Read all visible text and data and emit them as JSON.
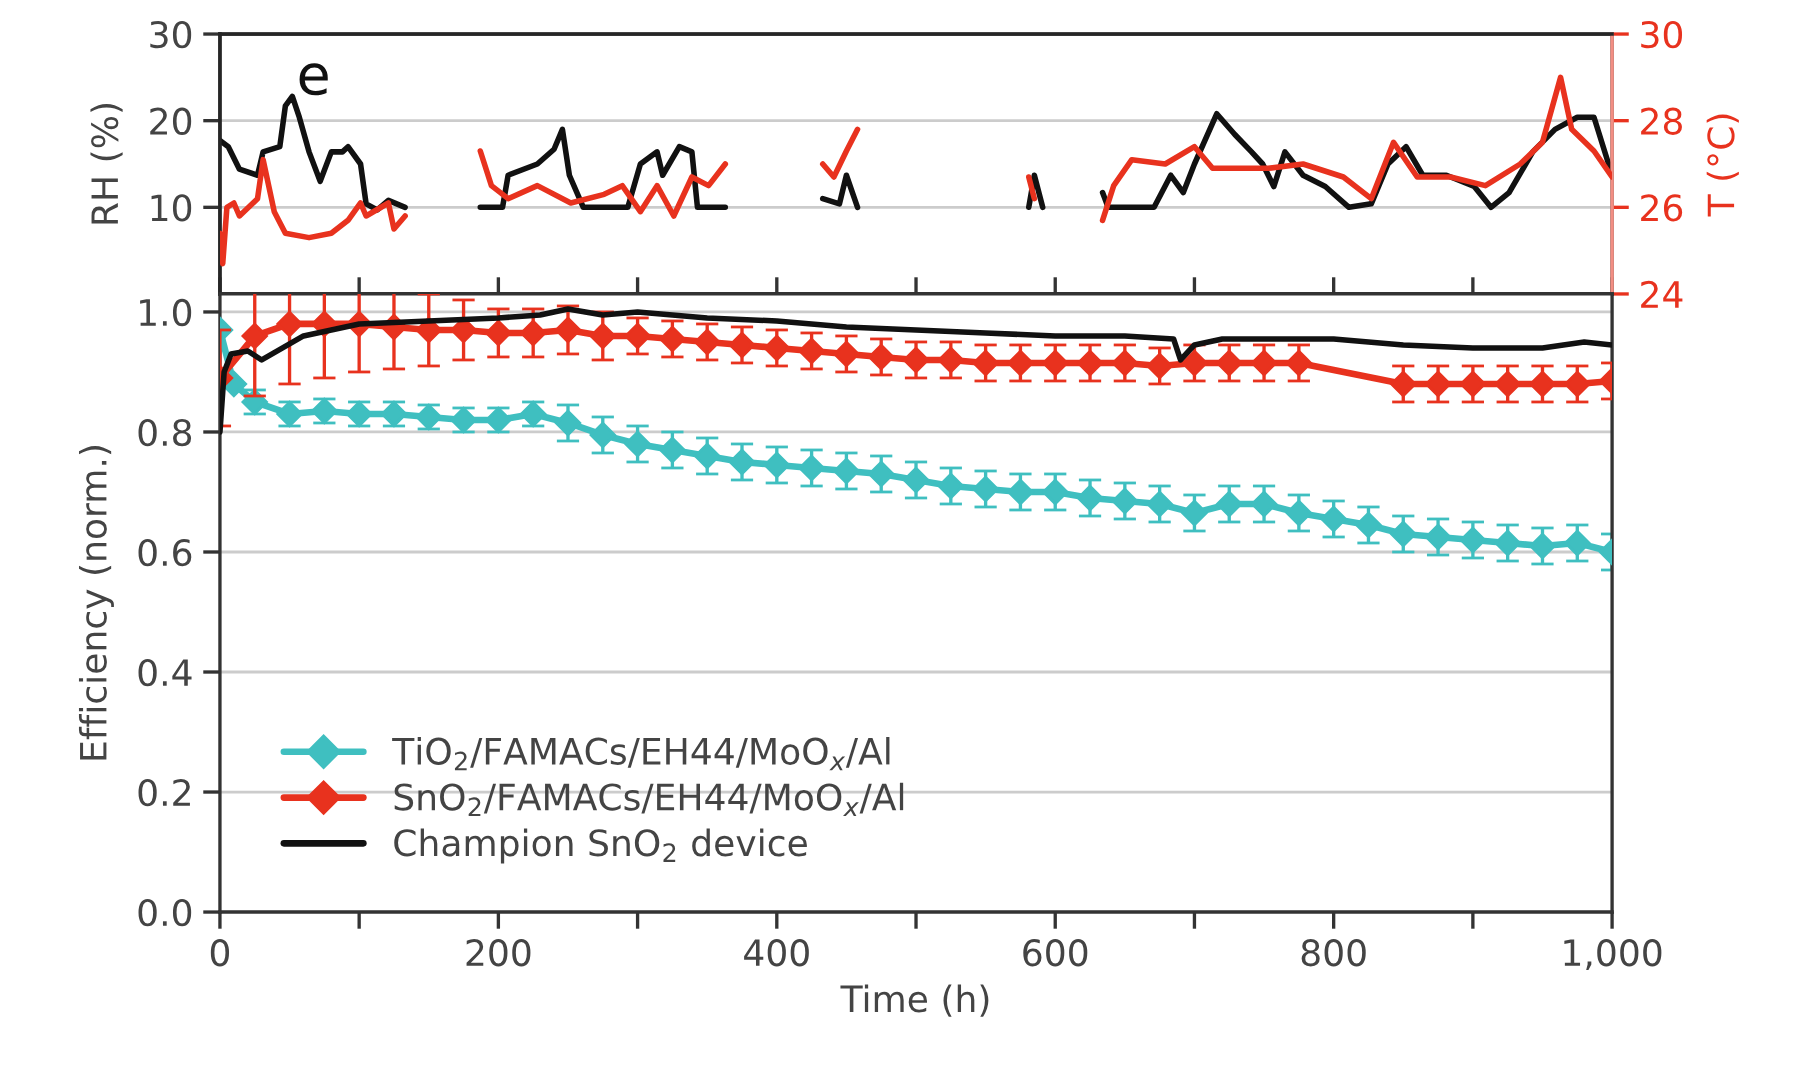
{
  "chart_data": [
    {
      "type": "line",
      "ylabel": "RH (%)",
      "y2label": "T (°C)",
      "annotations": [
        "e"
      ],
      "xlim": [
        0,
        1000
      ],
      "xticks": [
        0,
        100,
        200,
        300,
        400,
        500,
        600,
        700,
        800,
        900,
        1000
      ],
      "tick_labels": "y",
      "ylim": [
        0,
        30
      ],
      "yticks": [
        10,
        20,
        30
      ],
      "y2lim": [
        24,
        30
      ],
      "y2ticks": [
        24,
        26,
        28,
        30
      ],
      "grid": "y",
      "series": [
        {
          "color": "#111111",
          "x": [
            0,
            6,
            14,
            27,
            31,
            43,
            47,
            52,
            57,
            64,
            72,
            80,
            88,
            92,
            101,
            105,
            113,
            121,
            133,
            160,
            187,
            203,
            207,
            228,
            240,
            246,
            251,
            261,
            293,
            302,
            314,
            318,
            330,
            339,
            343,
            363,
            400,
            433,
            445,
            450,
            458,
            520,
            581,
            585,
            591,
            610,
            634,
            638,
            671,
            683,
            692,
            700,
            716,
            729,
            741,
            749,
            757,
            765,
            778,
            794,
            811,
            827,
            839,
            852,
            864,
            881,
            901,
            913,
            926,
            943,
            959,
            975,
            987,
            1000
          ],
          "values": [
            17.7,
            17,
            14.4,
            13.7,
            16.4,
            17,
            21.7,
            22.8,
            20.4,
            16.4,
            13,
            16.4,
            16.4,
            17,
            15,
            10.4,
            9.7,
            10.8,
            10,
            null,
            10,
            10,
            13.7,
            15,
            16.7,
            19,
            13.7,
            10,
            10,
            15,
            16.4,
            13.7,
            17,
            16.4,
            10,
            10,
            null,
            11,
            10.4,
            13.7,
            10,
            null,
            10,
            13.7,
            10,
            null,
            11.7,
            10,
            10,
            13.7,
            11.7,
            15,
            20.8,
            18.4,
            16.4,
            15,
            12.4,
            16.4,
            13.7,
            12.4,
            10,
            10.4,
            15,
            17,
            13.7,
            13.7,
            12.4,
            10,
            11.7,
            16.4,
            19,
            20.4,
            20.4,
            13.7
          ]
        },
        {
          "color": "#e8321e",
          "axis": "y2",
          "x": [
            0,
            2,
            5,
            10,
            14,
            27,
            31,
            39,
            47,
            64,
            80,
            92,
            101,
            105,
            121,
            125,
            133,
            160,
            187,
            195,
            207,
            228,
            252,
            276,
            289,
            302,
            314,
            326,
            339,
            351,
            363,
            400,
            433,
            441,
            450,
            458,
            520,
            581,
            585,
            610,
            634,
            642,
            655,
            679,
            700,
            713,
            729,
            753,
            778,
            807,
            827,
            843,
            860,
            884,
            909,
            934,
            950,
            963,
            971,
            987,
            1000
          ],
          "values": [
            25.4,
            24.7,
            26,
            26.1,
            25.8,
            26.2,
            27.1,
            25.9,
            25.4,
            25.3,
            25.4,
            25.7,
            26.1,
            25.8,
            26.1,
            25.5,
            25.8,
            null,
            27.3,
            26.5,
            26.2,
            26.5,
            26.1,
            26.3,
            26.5,
            25.9,
            26.5,
            25.8,
            26.7,
            26.5,
            27,
            null,
            27,
            26.7,
            27.3,
            27.8,
            null,
            26.7,
            26.2,
            null,
            25.7,
            26.5,
            27.1,
            27,
            27.4,
            26.9,
            26.9,
            26.9,
            27,
            26.7,
            26.2,
            27.5,
            26.7,
            26.7,
            26.5,
            27,
            27.5,
            29,
            27.8,
            27.3,
            26.7
          ]
        }
      ]
    },
    {
      "type": "line",
      "xlabel": "Time (h)",
      "ylabel": "Efficiency (norm.)",
      "xlim": [
        0,
        1000
      ],
      "xticks": [
        0,
        {
          "value": 100,
          "label": null
        },
        200,
        {
          "value": 300,
          "label": null
        },
        400,
        {
          "value": 500,
          "label": null
        },
        600,
        {
          "value": 700,
          "label": null
        },
        800,
        {
          "value": 900,
          "label": null
        },
        {
          "value": 1000,
          "label": "1,000"
        }
      ],
      "ylim": [
        0,
        1.03
      ],
      "yticks": [
        {
          "value": 0,
          "label": "0.0"
        },
        {
          "value": 0.2,
          "label": "0.2"
        },
        {
          "value": 0.4,
          "label": "0.4"
        },
        {
          "value": 0.6,
          "label": "0.6"
        },
        {
          "value": 0.8,
          "label": "0.8"
        },
        {
          "value": 1.0,
          "label": "1.0"
        }
      ],
      "grid": "y",
      "legend": "lower left",
      "series": [
        {
          "name": "TiO$_{2}$/FAMACs/EH44/MoO$_{x}$/Al",
          "color": "#3fbfc0",
          "marker": "diamond",
          "x": [
            0,
            10,
            25,
            50,
            75,
            100,
            125,
            150,
            175,
            200,
            225,
            250,
            275,
            300,
            325,
            350,
            375,
            400,
            425,
            450,
            475,
            500,
            525,
            550,
            575,
            600,
            625,
            650,
            675,
            700,
            725,
            750,
            775,
            800,
            825,
            850,
            875,
            900,
            925,
            950,
            975,
            1000
          ],
          "values": [
            0.97,
            0.88,
            0.85,
            0.83,
            0.835,
            0.83,
            0.83,
            0.825,
            0.82,
            0.82,
            0.83,
            0.815,
            0.795,
            0.78,
            0.77,
            0.76,
            0.75,
            0.745,
            0.74,
            0.735,
            0.73,
            0.72,
            0.71,
            0.705,
            0.7,
            0.7,
            0.69,
            0.685,
            0.68,
            0.665,
            0.68,
            0.68,
            0.665,
            0.655,
            0.645,
            0.63,
            0.625,
            0.62,
            0.615,
            0.61,
            0.615,
            0.6
          ],
          "errors": [
            null,
            null,
            0.02,
            0.02,
            0.02,
            0.02,
            0.02,
            0.02,
            0.02,
            0.02,
            0.02,
            0.03,
            0.03,
            0.03,
            0.03,
            0.03,
            0.03,
            0.03,
            0.03,
            0.03,
            0.03,
            0.03,
            0.03,
            0.03,
            0.03,
            0.03,
            0.03,
            0.03,
            0.03,
            0.03,
            0.03,
            0.03,
            0.03,
            0.03,
            0.03,
            0.03,
            0.03,
            0.03,
            0.03,
            0.03,
            0.03,
            0.03
          ]
        },
        {
          "name": "SnO$_{2}$/FAMACs/EH44/MoO$_{x}$/Al",
          "color": "#e8321e",
          "marker": "diamond",
          "x": [
            0,
            25,
            50,
            75,
            100,
            125,
            150,
            175,
            200,
            225,
            250,
            275,
            300,
            325,
            350,
            375,
            400,
            425,
            450,
            475,
            500,
            525,
            550,
            575,
            600,
            625,
            650,
            675,
            700,
            725,
            750,
            775,
            850,
            875,
            900,
            925,
            950,
            975,
            1000
          ],
          "values": [
            0.89,
            0.96,
            0.98,
            0.98,
            0.98,
            0.975,
            0.97,
            0.97,
            0.965,
            0.965,
            0.97,
            0.96,
            0.96,
            0.955,
            0.95,
            0.945,
            0.94,
            0.935,
            0.93,
            0.925,
            0.92,
            0.92,
            0.915,
            0.915,
            0.915,
            0.915,
            0.915,
            0.91,
            0.915,
            0.915,
            0.915,
            0.915,
            0.88,
            0.88,
            0.88,
            0.88,
            0.88,
            0.88,
            0.885
          ],
          "errors": [
            0.08,
            0.1,
            0.1,
            0.09,
            0.08,
            0.07,
            0.06,
            0.05,
            0.04,
            0.04,
            0.04,
            0.04,
            0.03,
            0.03,
            0.03,
            0.03,
            0.03,
            0.03,
            0.03,
            0.03,
            0.03,
            0.03,
            0.03,
            0.03,
            0.03,
            0.03,
            0.03,
            0.03,
            0.03,
            0.03,
            0.03,
            0.03,
            0.03,
            0.03,
            0.03,
            0.03,
            0.03,
            0.03,
            0.03
          ]
        },
        {
          "name": "Champion SnO$_{2}$ device",
          "color": "#111111",
          "x": [
            0,
            3,
            8,
            20,
            30,
            45,
            60,
            80,
            100,
            150,
            200,
            230,
            250,
            275,
            300,
            350,
            400,
            450,
            500,
            550,
            600,
            650,
            685,
            690,
            700,
            720,
            800,
            850,
            900,
            950,
            980,
            1000
          ],
          "values": [
            0.8,
            0.9,
            0.93,
            0.935,
            0.92,
            0.94,
            0.96,
            0.97,
            0.98,
            0.985,
            0.99,
            0.995,
            1.005,
            0.995,
            1.0,
            0.99,
            0.985,
            0.975,
            0.97,
            0.965,
            0.96,
            0.96,
            0.955,
            0.92,
            0.945,
            0.955,
            0.955,
            0.945,
            0.94,
            0.94,
            0.95,
            0.945
          ]
        }
      ]
    }
  ]
}
